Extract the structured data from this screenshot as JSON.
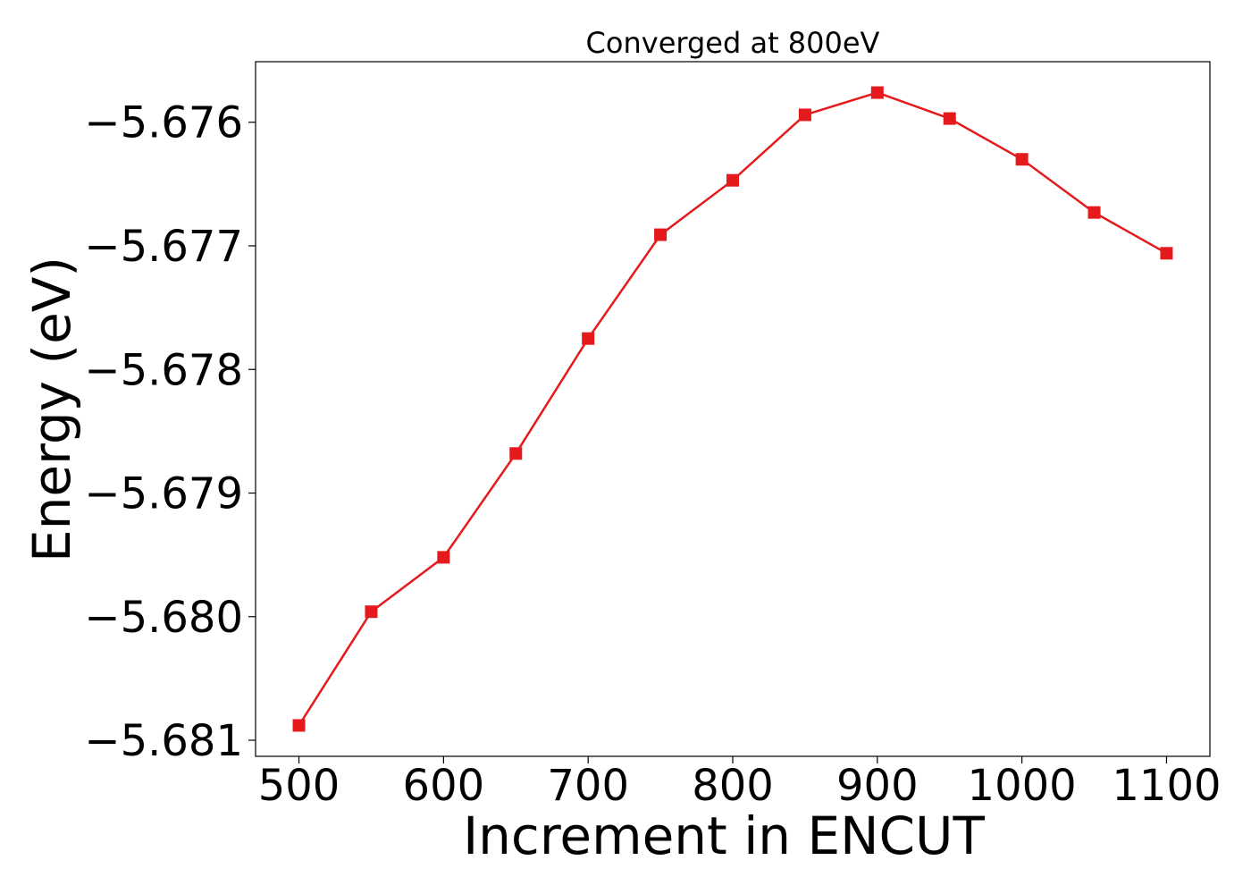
{
  "chart_data": {
    "type": "line",
    "title": "Converged at 800eV",
    "xlabel": "Increment in ENCUT",
    "ylabel": "Energy (eV)",
    "xlim": [
      470,
      1130
    ],
    "ylim": [
      -5.68113,
      -5.67551
    ],
    "x_ticks": [
      500,
      600,
      700,
      800,
      900,
      1000,
      1100
    ],
    "x_tick_labels": [
      "500",
      "600",
      "700",
      "800",
      "900",
      "1000",
      "1100"
    ],
    "y_ticks": [
      -5.676,
      -5.677,
      -5.678,
      -5.679,
      -5.68,
      -5.681
    ],
    "y_tick_labels": [
      "−5.676",
      "−5.677",
      "−5.678",
      "−5.679",
      "−5.680",
      "−5.681"
    ],
    "grid": false,
    "series": [
      {
        "color": "#e41a1c",
        "marker": "square",
        "x": [
          500,
          550,
          600,
          650,
          700,
          750,
          800,
          850,
          900,
          950,
          1000,
          1050,
          1100
        ],
        "y": [
          -5.68088,
          -5.67996,
          -5.67952,
          -5.67868,
          -5.67775,
          -5.67691,
          -5.67647,
          -5.67594,
          -5.67576,
          -5.67597,
          -5.6763,
          -5.67673,
          -5.67706
        ]
      }
    ]
  }
}
